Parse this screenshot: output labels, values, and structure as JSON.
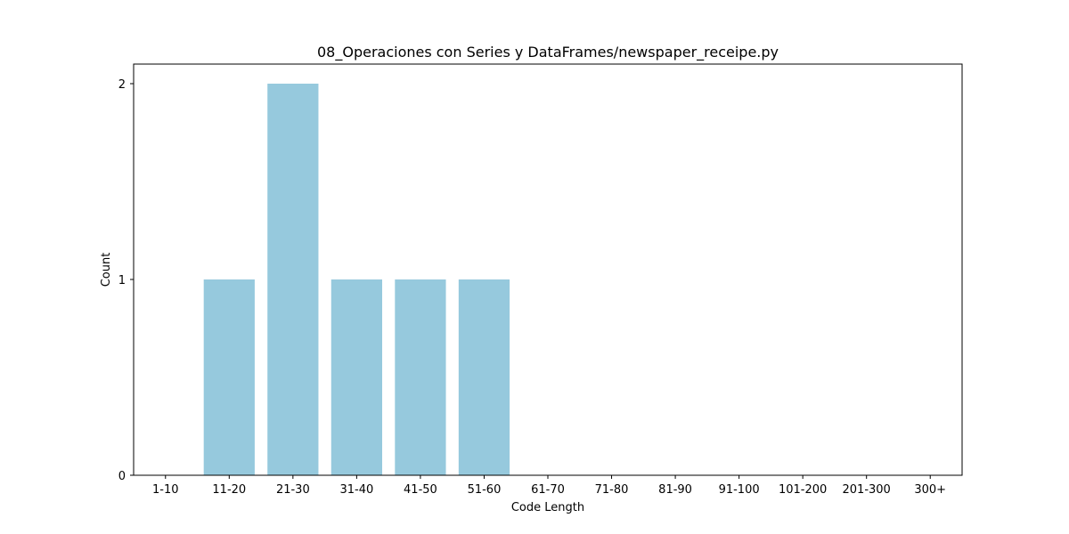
{
  "chart_data": {
    "type": "bar",
    "title": "08_Operaciones con Series y DataFrames/newspaper_receipe.py",
    "xlabel": "Code Length",
    "ylabel": "Count",
    "categories": [
      "1-10",
      "11-20",
      "21-30",
      "31-40",
      "41-50",
      "51-60",
      "61-70",
      "71-80",
      "81-90",
      "91-100",
      "101-200",
      "201-300",
      "300+"
    ],
    "values": [
      0,
      1,
      2,
      1,
      1,
      1,
      0,
      0,
      0,
      0,
      0,
      0,
      0
    ],
    "ylim": [
      0,
      2.1
    ],
    "yticks": [
      0,
      1,
      2
    ],
    "bar_color": "#96c9dd",
    "grid": false,
    "legend": "none"
  }
}
